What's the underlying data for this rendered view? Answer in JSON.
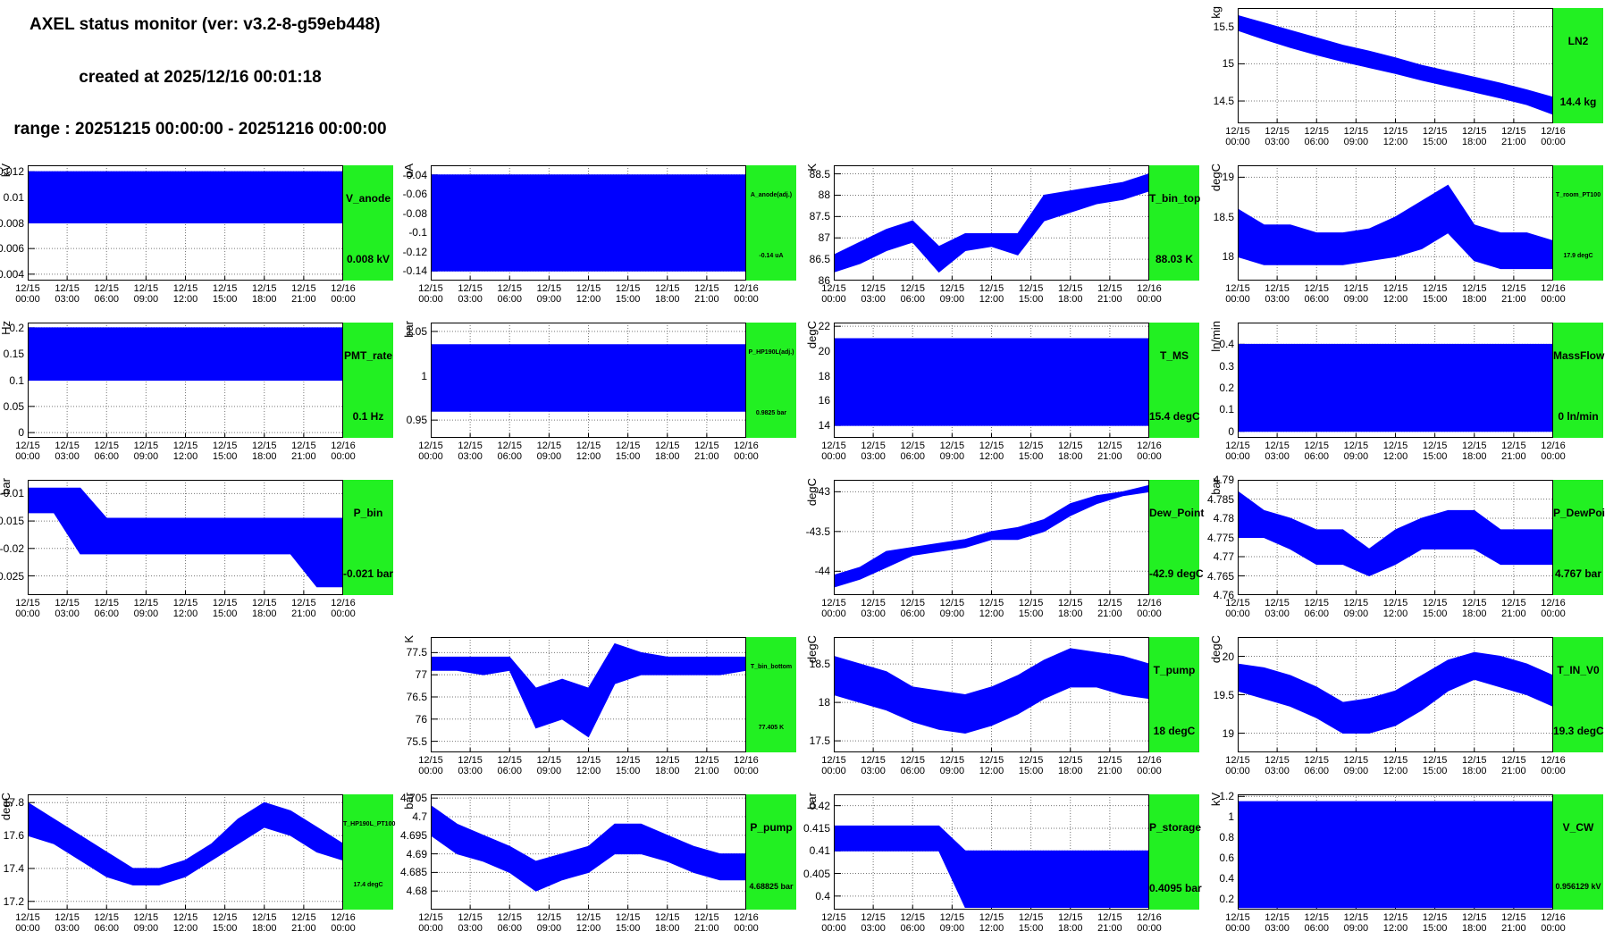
{
  "header": {
    "title": "AXEL status monitor (ver: v3.2-8-g59eb448)",
    "created": "created at 2025/12/16 00:01:18",
    "range": "range : 20251215 00:00:00 - 20251216 00:00:00"
  },
  "time_axis": {
    "x": [
      0,
      2,
      4,
      6,
      8,
      10,
      12,
      14,
      16,
      18,
      20,
      22,
      24
    ],
    "xlim": [
      0,
      24
    ],
    "xticks": [
      {
        "value": 0,
        "label": "12/15 00:00"
      },
      {
        "value": 3,
        "label": "12/15 03:00"
      },
      {
        "value": 6,
        "label": "12/15 06:00"
      },
      {
        "value": 9,
        "label": "12/15 09:00"
      },
      {
        "value": 12,
        "label": "12/15 12:00"
      },
      {
        "value": 15,
        "label": "12/15 15:00"
      },
      {
        "value": 18,
        "label": "12/15 18:00"
      },
      {
        "value": 21,
        "label": "12/15 21:00"
      },
      {
        "value": 24,
        "label": "12/16 00:00"
      }
    ]
  },
  "chart_data": [
    {
      "type": "band",
      "name": "LN2",
      "value_label": "14.4 kg",
      "y_label": "kg",
      "color": "#0000ff",
      "ylim": [
        14.2,
        15.75
      ],
      "yticks": [
        14.5,
        15,
        15.5
      ],
      "low": [
        15.45,
        15.33,
        15.22,
        15.12,
        15.03,
        14.95,
        14.87,
        14.78,
        14.7,
        14.62,
        14.54,
        14.45,
        14.32
      ],
      "high": [
        15.65,
        15.55,
        15.45,
        15.35,
        15.25,
        15.17,
        15.08,
        14.98,
        14.9,
        14.82,
        14.74,
        14.65,
        14.55
      ]
    },
    {
      "type": "band",
      "name": "V_anode",
      "value_label": "0.008 kV",
      "y_label": "kV",
      "color": "#0000ff",
      "ylim": [
        0.0035,
        0.0125
      ],
      "yticks": [
        0.004,
        0.006,
        0.008,
        0.01,
        0.012
      ],
      "low": [
        0.008,
        0.008,
        0.008,
        0.008,
        0.008,
        0.008,
        0.008,
        0.008,
        0.008,
        0.008,
        0.008,
        0.008,
        0.008
      ],
      "high": [
        0.012,
        0.012,
        0.012,
        0.012,
        0.012,
        0.012,
        0.012,
        0.012,
        0.012,
        0.012,
        0.012,
        0.012,
        0.012
      ]
    },
    {
      "type": "band",
      "name": "A_anode(adj.)",
      "value_label": "-0.14 uA",
      "y_label": "uA",
      "color": "#0000ff",
      "ylim": [
        -0.15,
        -0.03
      ],
      "yticks": [
        -0.14,
        -0.12,
        -0.1,
        -0.08,
        -0.06,
        -0.04
      ],
      "low": [
        -0.14,
        -0.14,
        -0.14,
        -0.14,
        -0.14,
        -0.14,
        -0.14,
        -0.14,
        -0.14,
        -0.14,
        -0.14,
        -0.14,
        -0.14
      ],
      "high": [
        -0.04,
        -0.04,
        -0.04,
        -0.04,
        -0.04,
        -0.04,
        -0.04,
        -0.04,
        -0.04,
        -0.04,
        -0.04,
        -0.04,
        -0.04
      ]
    },
    {
      "type": "band",
      "name": "T_bin_top",
      "value_label": "88.03 K",
      "y_label": "K",
      "color": "#0000ff",
      "ylim": [
        86,
        88.7
      ],
      "yticks": [
        86,
        86.5,
        87,
        87.5,
        88,
        88.5
      ],
      "low": [
        86.2,
        86.4,
        86.7,
        86.9,
        86.2,
        86.7,
        86.8,
        86.6,
        87.4,
        87.6,
        87.8,
        87.9,
        88.1
      ],
      "high": [
        86.6,
        86.9,
        87.2,
        87.4,
        86.8,
        87.1,
        87.1,
        87.1,
        88.0,
        88.1,
        88.2,
        88.3,
        88.5
      ]
    },
    {
      "type": "band",
      "name": "T_room_PT100",
      "value_label": "17.9 degC",
      "y_label": "degC",
      "color": "#0000ff",
      "ylim": [
        17.7,
        19.15
      ],
      "yticks": [
        18,
        18.5,
        19
      ],
      "low": [
        18.0,
        17.9,
        17.9,
        17.9,
        17.9,
        17.95,
        18.0,
        18.1,
        18.3,
        17.95,
        17.85,
        17.85,
        17.85
      ],
      "high": [
        18.6,
        18.4,
        18.4,
        18.3,
        18.3,
        18.35,
        18.5,
        18.7,
        18.9,
        18.4,
        18.3,
        18.3,
        18.2
      ]
    },
    {
      "type": "band",
      "name": "PMT_rate",
      "value_label": "0.1 Hz",
      "y_label": "Hz",
      "color": "#0000ff",
      "ylim": [
        -0.01,
        0.21
      ],
      "yticks": [
        0,
        0.05,
        0.1,
        0.15,
        0.2
      ],
      "low": [
        0.1,
        0.1,
        0.1,
        0.1,
        0.1,
        0.1,
        0.1,
        0.1,
        0.1,
        0.1,
        0.1,
        0.1,
        0.1
      ],
      "high": [
        0.2,
        0.2,
        0.2,
        0.2,
        0.2,
        0.2,
        0.2,
        0.2,
        0.2,
        0.2,
        0.2,
        0.2,
        0.2
      ]
    },
    {
      "type": "band",
      "name": "P_HP190L(adj.)",
      "value_label": "0.9825 bar",
      "y_label": "bar",
      "color": "#0000ff",
      "ylim": [
        0.93,
        1.06
      ],
      "yticks": [
        0.95,
        1,
        1.05
      ],
      "low": [
        0.96,
        0.96,
        0.96,
        0.96,
        0.96,
        0.96,
        0.96,
        0.96,
        0.96,
        0.96,
        0.96,
        0.96,
        0.96
      ],
      "high": [
        1.035,
        1.035,
        1.035,
        1.035,
        1.035,
        1.035,
        1.035,
        1.035,
        1.035,
        1.035,
        1.035,
        1.035,
        1.035
      ]
    },
    {
      "type": "band",
      "name": "T_MS",
      "value_label": "15.4 degC",
      "y_label": "degC",
      "color": "#0000ff",
      "ylim": [
        13,
        22.3
      ],
      "yticks": [
        14,
        16,
        18,
        20,
        22
      ],
      "low": [
        14,
        14,
        14,
        14,
        14,
        14,
        14,
        14,
        14,
        14,
        14,
        14,
        14
      ],
      "high": [
        21,
        21,
        21,
        21,
        21,
        21,
        21,
        21,
        21,
        21,
        21,
        21,
        21
      ]
    },
    {
      "type": "band",
      "name": "MassFlow",
      "value_label": "0 ln/min",
      "y_label": "ln/min",
      "color": "#0000ff",
      "ylim": [
        -0.03,
        0.5
      ],
      "yticks": [
        0,
        0.1,
        0.2,
        0.3,
        0.4
      ],
      "low": [
        0,
        0,
        0,
        0,
        0,
        0,
        0,
        0,
        0,
        0,
        0,
        0,
        0
      ],
      "high": [
        0.4,
        0.4,
        0.4,
        0.4,
        0.4,
        0.4,
        0.4,
        0.4,
        0.4,
        0.4,
        0.4,
        0.4,
        0.4
      ]
    },
    {
      "type": "band",
      "name": "P_bin",
      "value_label": "-0.021 bar",
      "y_label": "bar",
      "color": "#0000ff",
      "ylim": [
        -0.0285,
        -0.0075
      ],
      "yticks": [
        -0.025,
        -0.02,
        -0.015,
        -0.01
      ],
      "low": [
        -0.0135,
        -0.0135,
        -0.021,
        -0.021,
        -0.021,
        -0.021,
        -0.021,
        -0.021,
        -0.021,
        -0.021,
        -0.021,
        -0.027,
        -0.027
      ],
      "high": [
        -0.009,
        -0.009,
        -0.009,
        -0.0145,
        -0.0145,
        -0.0145,
        -0.0145,
        -0.0145,
        -0.0145,
        -0.0145,
        -0.0145,
        -0.0145,
        -0.0145
      ]
    },
    {
      "type": "band",
      "name": "Dew_Point",
      "value_label": "-42.9 degC",
      "y_label": "degC",
      "color": "#0000ff",
      "ylim": [
        -44.3,
        -42.85
      ],
      "yticks": [
        -44,
        -43.5,
        -43
      ],
      "low": [
        -44.2,
        -44.1,
        -43.95,
        -43.8,
        -43.75,
        -43.7,
        -43.6,
        -43.6,
        -43.5,
        -43.3,
        -43.15,
        -43.05,
        -43.0
      ],
      "high": [
        -44.05,
        -43.95,
        -43.75,
        -43.7,
        -43.65,
        -43.6,
        -43.5,
        -43.45,
        -43.35,
        -43.15,
        -43.05,
        -43.0,
        -42.92
      ]
    },
    {
      "type": "band",
      "name": "P_DewPoint",
      "value_label": "4.767 bar",
      "y_label": "bar",
      "color": "#0000ff",
      "ylim": [
        4.76,
        4.79
      ],
      "yticks": [
        4.76,
        4.765,
        4.77,
        4.775,
        4.78,
        4.785,
        4.79
      ],
      "low": [
        4.775,
        4.775,
        4.772,
        4.768,
        4.768,
        4.765,
        4.768,
        4.772,
        4.772,
        4.772,
        4.768,
        4.768,
        4.768
      ],
      "high": [
        4.787,
        4.782,
        4.78,
        4.777,
        4.777,
        4.772,
        4.777,
        4.78,
        4.782,
        4.782,
        4.777,
        4.777,
        4.777
      ]
    },
    {
      "type": "band",
      "name": "T_bin_bottom",
      "value_label": "77.405 K",
      "y_label": "K",
      "color": "#0000ff",
      "ylim": [
        75.25,
        77.85
      ],
      "yticks": [
        75.5,
        76,
        76.5,
        77,
        77.5
      ],
      "low": [
        77.1,
        77.1,
        77.0,
        77.1,
        75.8,
        76.0,
        75.6,
        76.8,
        77.0,
        77.0,
        77.0,
        77.0,
        77.1
      ],
      "high": [
        77.4,
        77.4,
        77.4,
        77.4,
        76.7,
        76.9,
        76.7,
        77.7,
        77.5,
        77.4,
        77.4,
        77.4,
        77.4
      ]
    },
    {
      "type": "band",
      "name": "T_pump",
      "value_label": "18 degC",
      "y_label": "degC",
      "color": "#0000ff",
      "ylim": [
        17.35,
        18.85
      ],
      "yticks": [
        17.5,
        18,
        18.5
      ],
      "low": [
        18.1,
        18.0,
        17.9,
        17.75,
        17.65,
        17.6,
        17.7,
        17.85,
        18.05,
        18.2,
        18.2,
        18.1,
        18.05
      ],
      "high": [
        18.6,
        18.5,
        18.4,
        18.2,
        18.15,
        18.1,
        18.2,
        18.35,
        18.55,
        18.7,
        18.65,
        18.6,
        18.5
      ]
    },
    {
      "type": "band",
      "name": "T_IN_V0",
      "value_label": "19.3 degC",
      "y_label": "degC",
      "color": "#0000ff",
      "ylim": [
        18.75,
        20.25
      ],
      "yticks": [
        19,
        19.5,
        20
      ],
      "low": [
        19.55,
        19.45,
        19.35,
        19.2,
        19.0,
        19.0,
        19.1,
        19.3,
        19.55,
        19.7,
        19.6,
        19.5,
        19.35
      ],
      "high": [
        19.9,
        19.85,
        19.75,
        19.6,
        19.4,
        19.45,
        19.55,
        19.75,
        19.95,
        20.05,
        20.0,
        19.9,
        19.75
      ]
    },
    {
      "type": "band",
      "name": "T_HP190L_PT100",
      "value_label": "17.4 degC",
      "y_label": "degC",
      "color": "#0000ff",
      "ylim": [
        17.15,
        17.85
      ],
      "yticks": [
        17.2,
        17.4,
        17.6,
        17.8
      ],
      "low": [
        17.6,
        17.55,
        17.45,
        17.35,
        17.3,
        17.3,
        17.35,
        17.45,
        17.55,
        17.65,
        17.6,
        17.5,
        17.45
      ],
      "high": [
        17.8,
        17.7,
        17.6,
        17.5,
        17.4,
        17.4,
        17.45,
        17.55,
        17.7,
        17.8,
        17.75,
        17.65,
        17.55
      ]
    },
    {
      "type": "band",
      "name": "P_pump",
      "value_label": "4.68825 bar",
      "y_label": "bar",
      "color": "#0000ff",
      "ylim": [
        4.675,
        4.706
      ],
      "yticks": [
        4.68,
        4.685,
        4.69,
        4.695,
        4.7,
        4.705
      ],
      "low": [
        4.695,
        4.69,
        4.688,
        4.685,
        4.68,
        4.683,
        4.685,
        4.69,
        4.69,
        4.688,
        4.685,
        4.683,
        4.683
      ],
      "high": [
        4.703,
        4.698,
        4.695,
        4.692,
        4.688,
        4.69,
        4.692,
        4.698,
        4.698,
        4.695,
        4.692,
        4.69,
        4.69
      ]
    },
    {
      "type": "band",
      "name": "P_storage",
      "value_label": "0.4095 bar",
      "y_label": "bar",
      "color": "#0000ff",
      "ylim": [
        0.397,
        0.4225
      ],
      "yticks": [
        0.4,
        0.405,
        0.41,
        0.415,
        0.42
      ],
      "low": [
        0.41,
        0.41,
        0.41,
        0.41,
        0.41,
        0.3975,
        0.3975,
        0.3975,
        0.3975,
        0.3975,
        0.3975,
        0.3975,
        0.3975
      ],
      "high": [
        0.4155,
        0.4155,
        0.4155,
        0.4155,
        0.4155,
        0.41,
        0.41,
        0.41,
        0.41,
        0.41,
        0.41,
        0.41,
        0.41
      ]
    },
    {
      "type": "band",
      "name": "V_CW",
      "value_label": "0.956129 kV",
      "y_label": "kV",
      "color": "#0000ff",
      "ylim": [
        0.1,
        1.22
      ],
      "yticks": [
        0.2,
        0.4,
        0.6,
        0.8,
        1,
        1.2
      ],
      "low": [
        0.12,
        0.12,
        0.12,
        0.12,
        0.12,
        0.12,
        0.12,
        0.12,
        0.12,
        0.12,
        0.12,
        0.12,
        0.12
      ],
      "high": [
        1.15,
        1.15,
        1.15,
        1.15,
        1.15,
        1.15,
        1.15,
        1.15,
        1.15,
        1.15,
        1.15,
        1.15,
        1.15
      ]
    }
  ]
}
